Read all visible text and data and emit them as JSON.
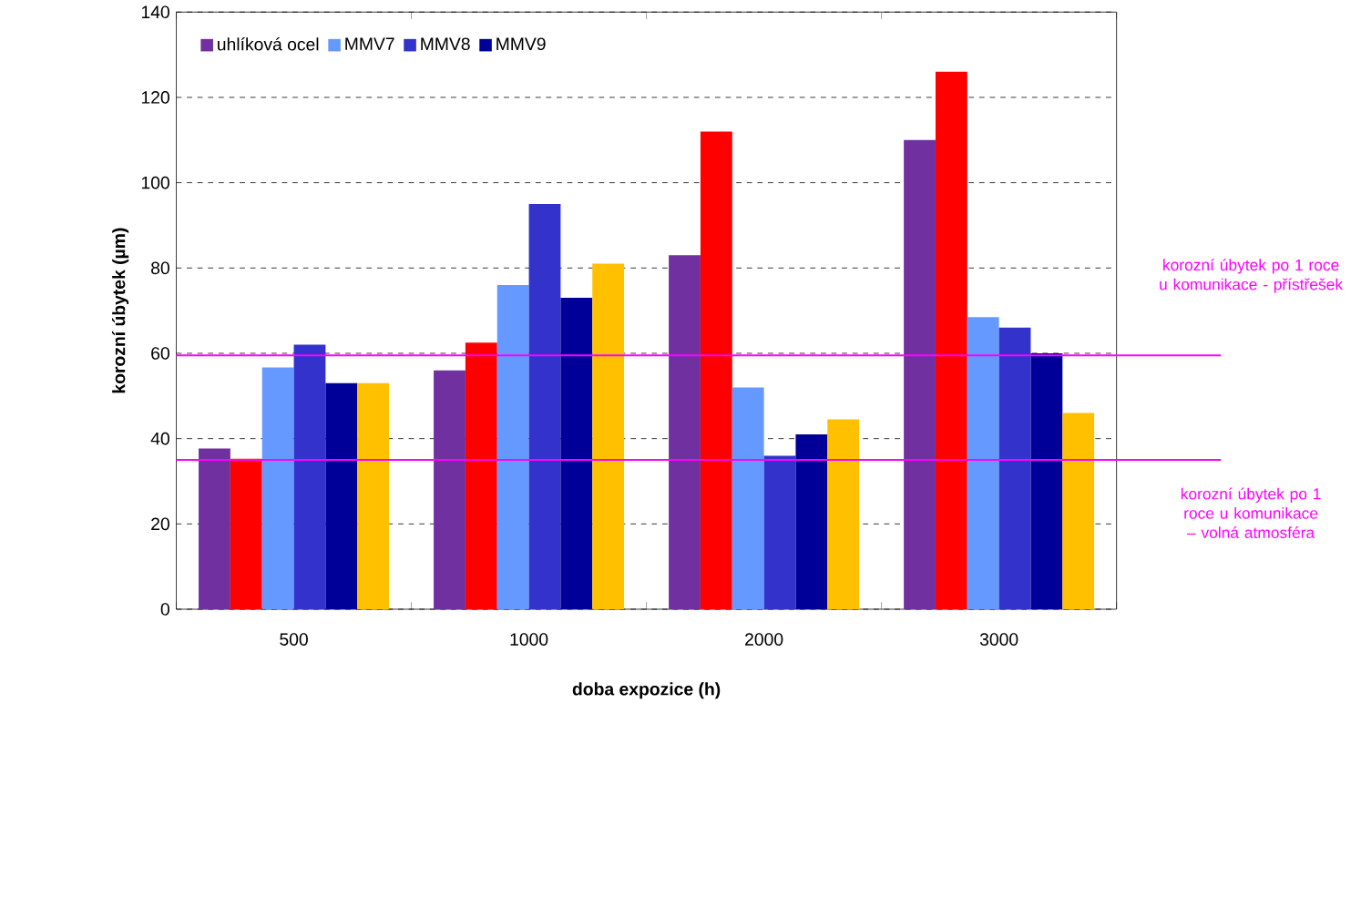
{
  "chart_data": {
    "type": "bar",
    "xlabel": "doba expozice (h)",
    "ylabel": "korozní úbytek (µm)",
    "categories": [
      "500",
      "1000",
      "2000",
      "3000"
    ],
    "series": [
      {
        "name": "uhlíková ocel",
        "color": "#7030a0",
        "values": [
          37.7,
          56,
          83,
          110
        ]
      },
      {
        "color": "#ff0000",
        "values": [
          35.3,
          62.5,
          112,
          126
        ]
      },
      {
        "name": "MMV7",
        "color": "#6699ff",
        "values": [
          56.7,
          76,
          52,
          68.5
        ]
      },
      {
        "name": "MMV8",
        "color": "#3333cc",
        "values": [
          62,
          95,
          36,
          66
        ]
      },
      {
        "name": "MMV9",
        "color": "#000099",
        "values": [
          53,
          73,
          41,
          60
        ]
      },
      {
        "color": "#ffc000",
        "values": [
          53,
          81,
          44.5,
          46
        ]
      }
    ],
    "ylim": [
      0,
      140
    ],
    "yticks": [
      0,
      20,
      40,
      60,
      80,
      100,
      120,
      140
    ],
    "grid": "y",
    "legend": "top left",
    "ref_lines": [
      {
        "axis": "y",
        "value": 59.5,
        "label": "korozní úbytek po 1 roce u komunikace - přístřešek",
        "color": "#ff00ff"
      },
      {
        "axis": "y",
        "value": 35,
        "label": "korozní úbytek po 1 roce u komunikace – volná atmosféra",
        "color": "#ff00ff"
      }
    ]
  }
}
